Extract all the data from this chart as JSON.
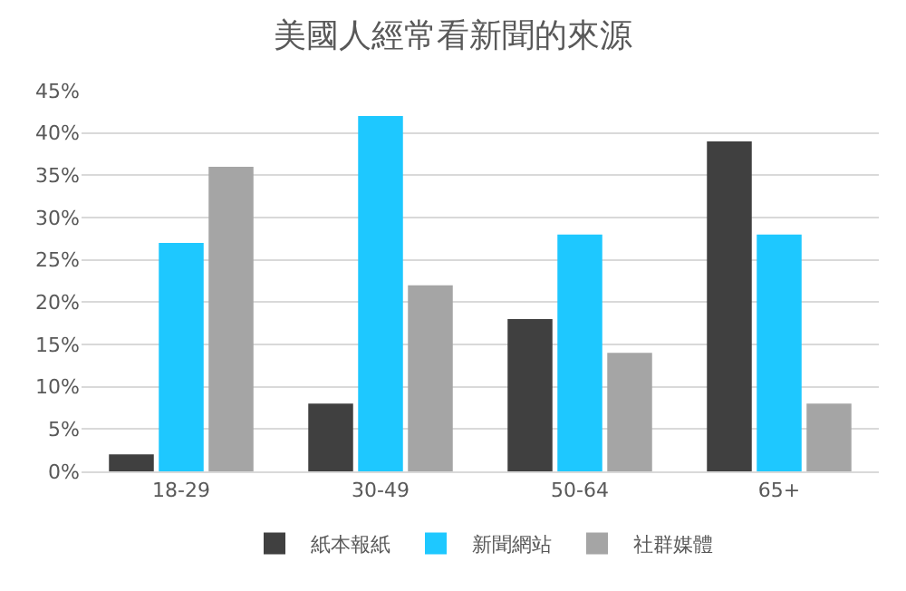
{
  "chart_data": {
    "type": "bar",
    "title": "美國人經常看新聞的來源",
    "categories": [
      "18-29",
      "30-49",
      "50-64",
      "65+"
    ],
    "series": [
      {
        "name": "紙本報紙",
        "color": "#404040",
        "values": [
          2,
          8,
          18,
          39
        ]
      },
      {
        "name": "新聞網站",
        "color": "#1ec8ff",
        "values": [
          27,
          42,
          28,
          28
        ]
      },
      {
        "name": "社群媒體",
        "color": "#a5a5a5",
        "values": [
          36,
          22,
          14,
          8
        ]
      }
    ],
    "ylim": [
      0,
      45
    ],
    "yticks": [
      {
        "value": 0,
        "label": "0%"
      },
      {
        "value": 5,
        "label": "5%"
      },
      {
        "value": 10,
        "label": "10%"
      },
      {
        "value": 15,
        "label": "15%"
      },
      {
        "value": 20,
        "label": "20%"
      },
      {
        "value": 25,
        "label": "25%"
      },
      {
        "value": 30,
        "label": "30%"
      },
      {
        "value": 35,
        "label": "35%"
      },
      {
        "value": 40,
        "label": "40%"
      },
      {
        "value": 45,
        "label": "45%"
      }
    ],
    "grid": "y",
    "legend": "bottom"
  }
}
